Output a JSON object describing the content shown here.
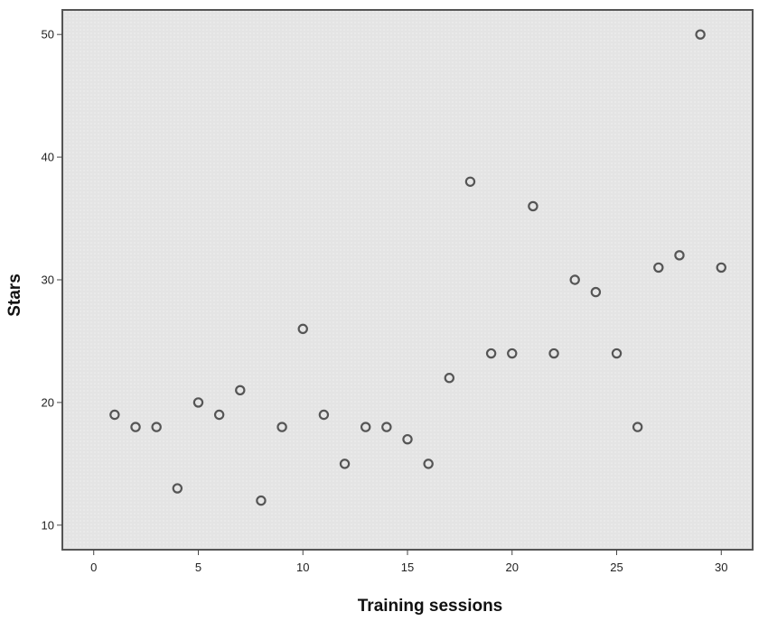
{
  "chart_data": {
    "type": "scatter",
    "title": "",
    "xlabel": "Training sessions",
    "ylabel": "Stars",
    "xlim": [
      -1.5,
      31.5
    ],
    "ylim": [
      8,
      52
    ],
    "xticks": [
      0,
      5,
      10,
      15,
      20,
      25,
      30
    ],
    "yticks": [
      10,
      20,
      30,
      40,
      50
    ],
    "grid": false,
    "legend": "none",
    "colors": {
      "plot_background": "#e6e6e6",
      "marker_stroke": "#555555",
      "frame": "#555555"
    },
    "series": [
      {
        "x": [
          1,
          2,
          3,
          4,
          5,
          6,
          7,
          8,
          9,
          10,
          11,
          12,
          13,
          14,
          15,
          16,
          17,
          18,
          19,
          20,
          21,
          22,
          23,
          24,
          25,
          26,
          27,
          28,
          29,
          30
        ],
        "y": [
          19,
          18,
          18,
          13,
          20,
          19,
          21,
          12,
          18,
          26,
          19,
          15,
          18,
          18,
          17,
          15,
          22,
          38,
          24,
          24,
          36,
          24,
          30,
          29,
          24,
          18,
          31,
          32,
          50,
          31
        ]
      }
    ]
  }
}
